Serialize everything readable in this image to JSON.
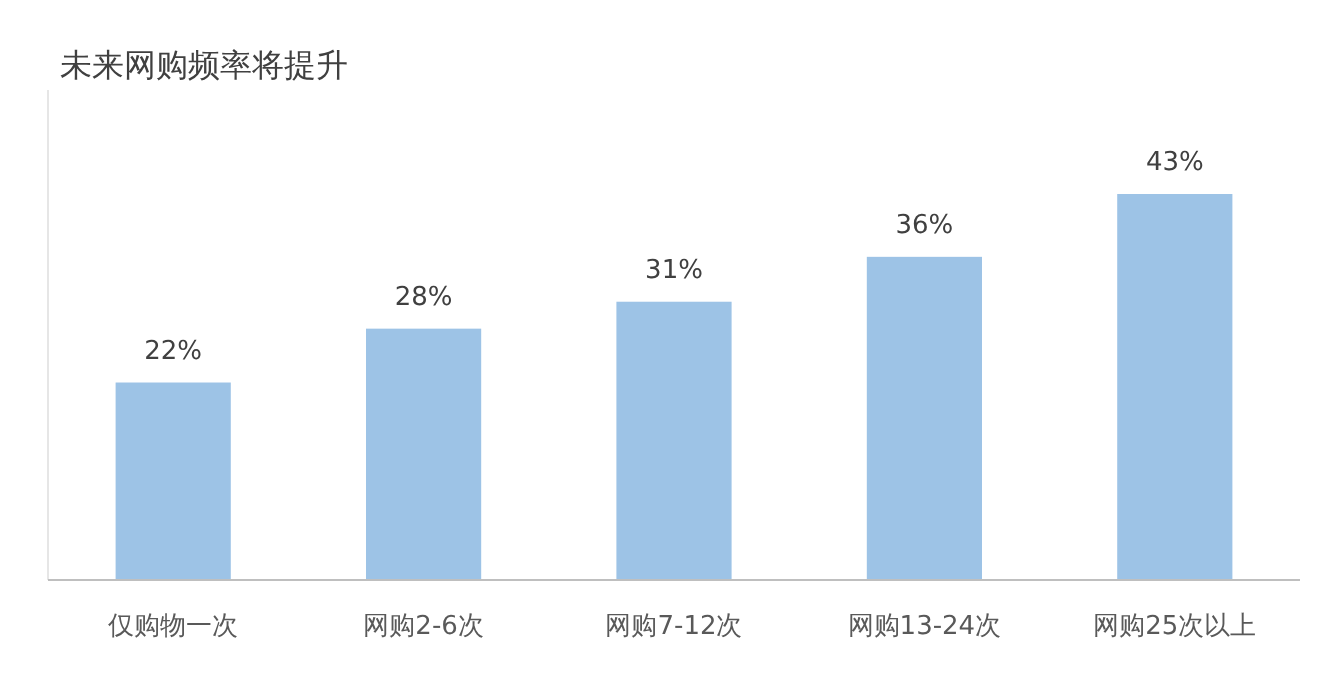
{
  "chart_data": {
    "type": "bar",
    "title": "未来网购频率将提升",
    "categories": [
      "仅购物一次",
      "网购2-6次",
      "网购7-12次",
      "网购13-24次",
      "网购25次以上"
    ],
    "values": [
      22,
      28,
      31,
      36,
      43
    ],
    "value_labels": [
      "22%",
      "28%",
      "31%",
      "36%",
      "43%"
    ],
    "color": "#9dc3e6"
  }
}
